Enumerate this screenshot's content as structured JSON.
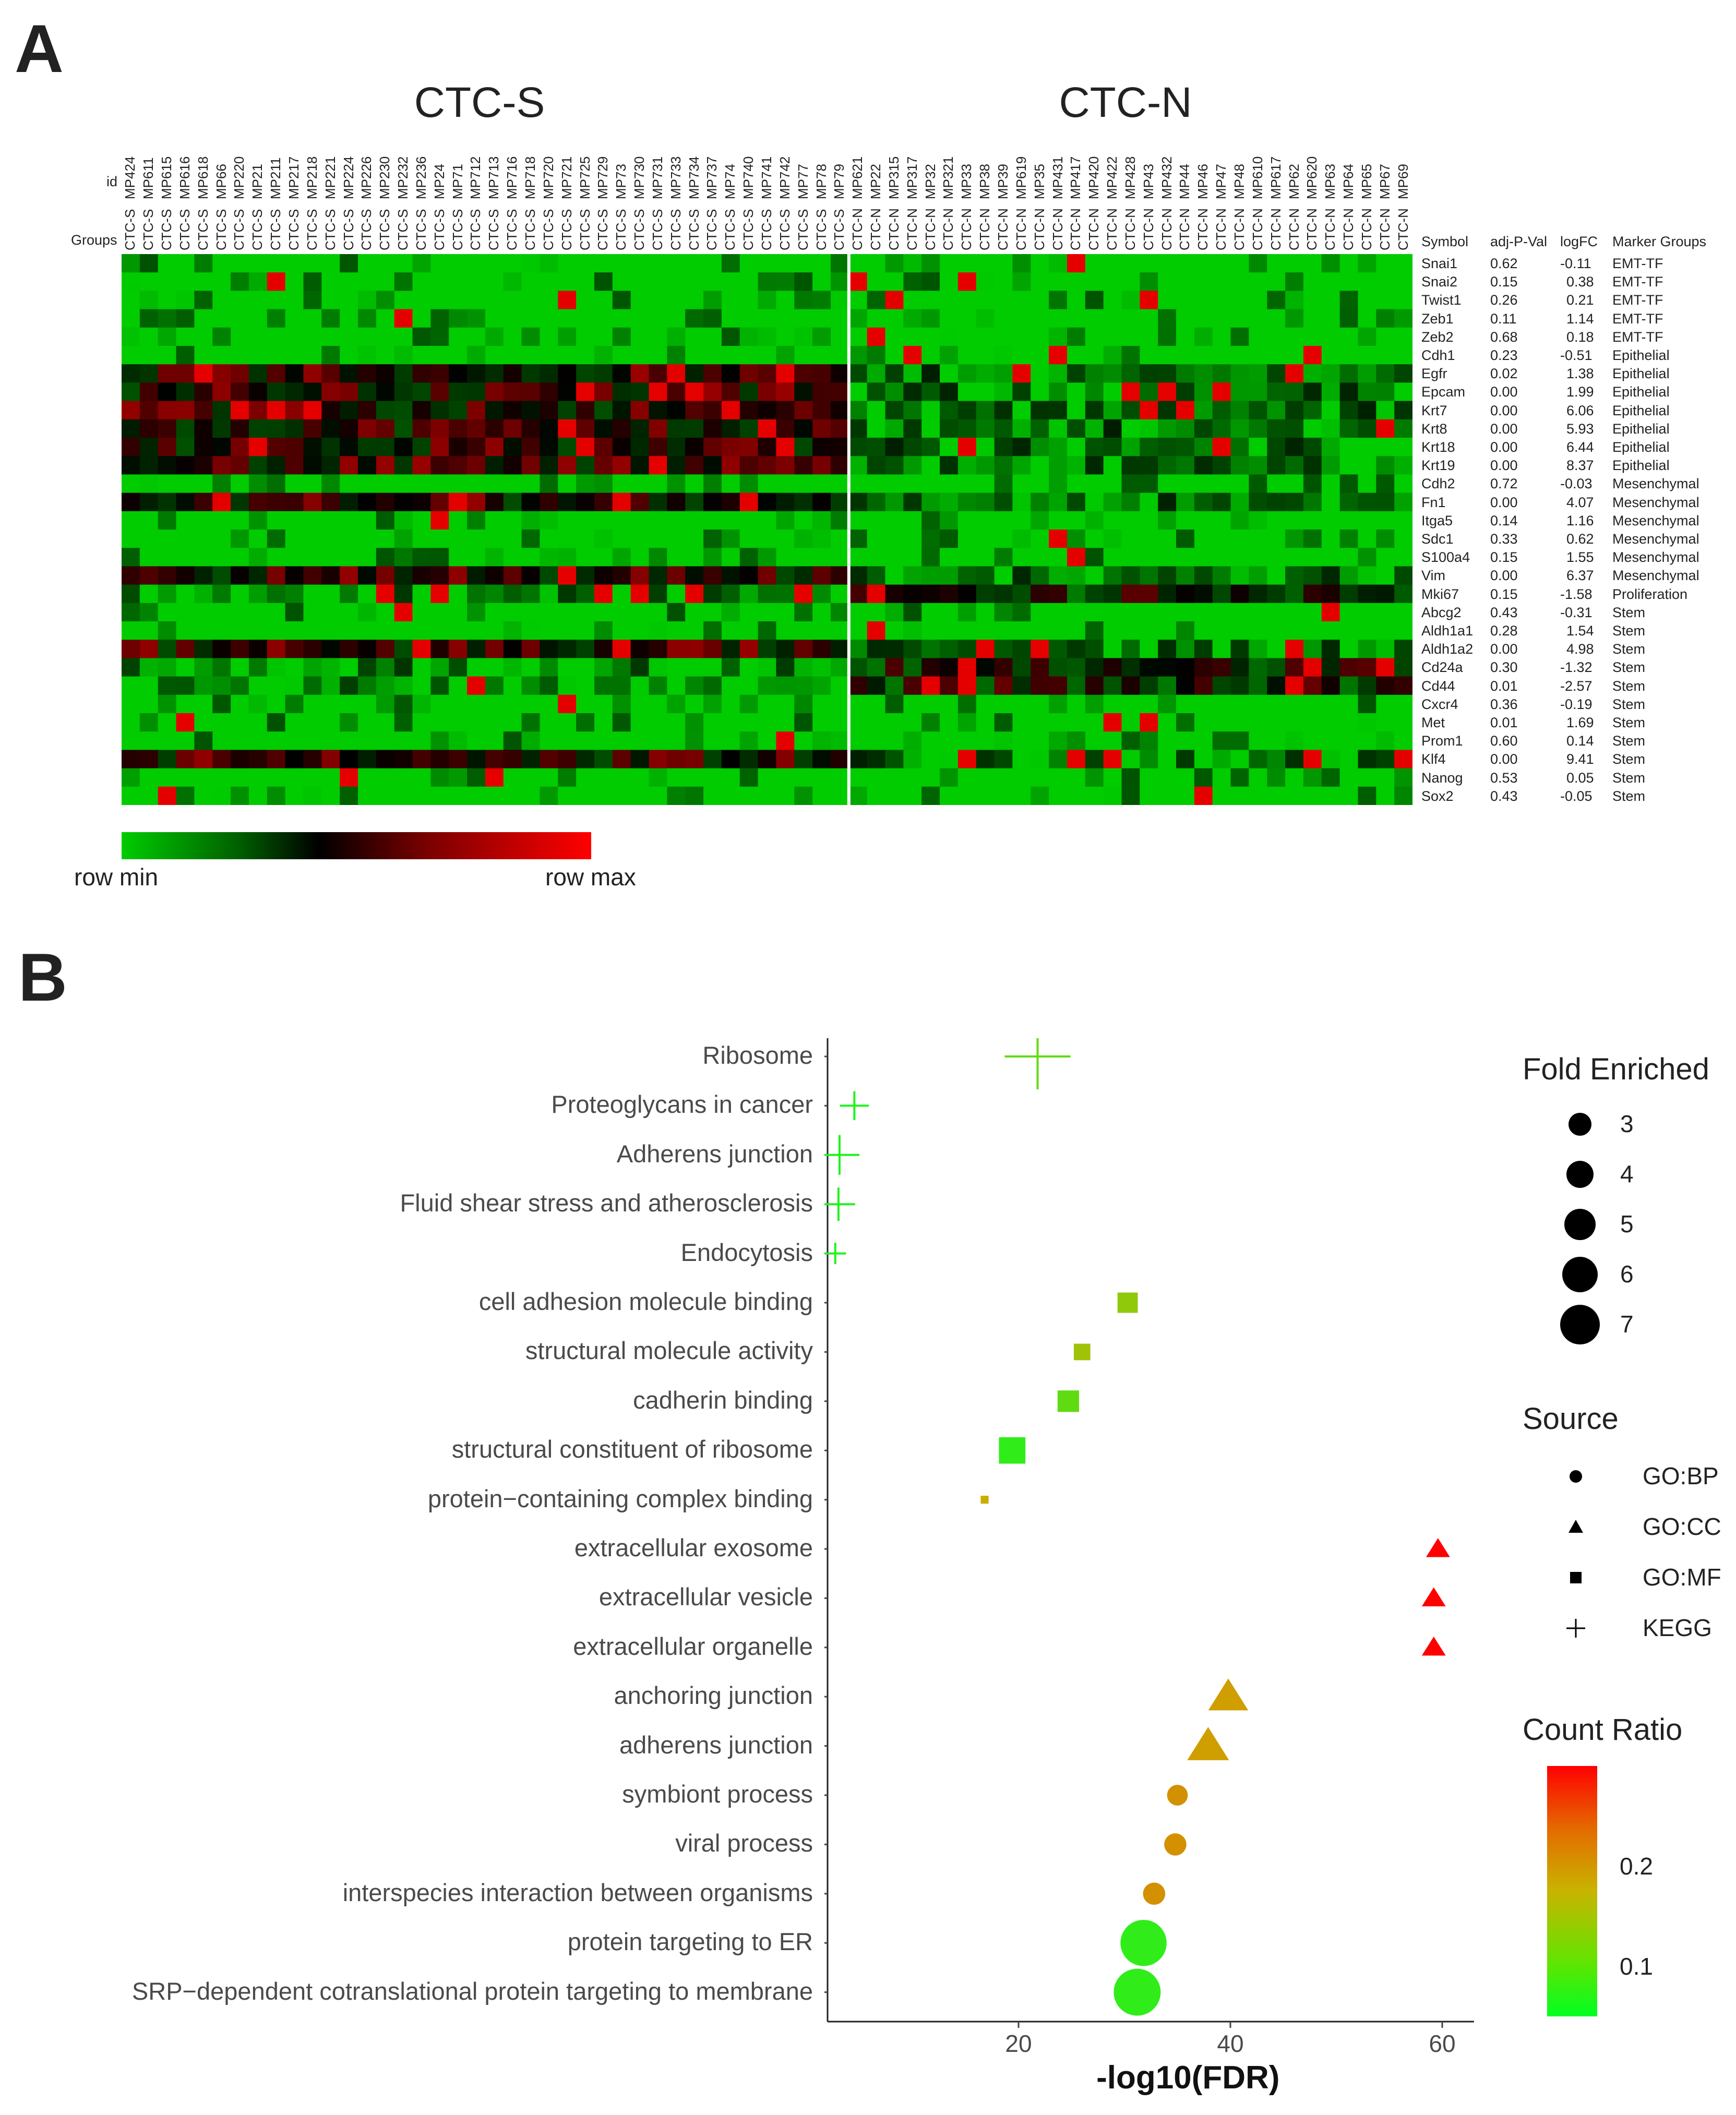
{
  "panel_a": {
    "letter": "A",
    "group_titles": {
      "left": "CTC-S",
      "right": "CTC-N"
    },
    "id_row_label": "id",
    "groups_row_label": "Groups",
    "ids_s": [
      "MP424",
      "MP611",
      "MP615",
      "MP616",
      "MP618",
      "MP66",
      "MP220",
      "MP21",
      "MP211",
      "MP217",
      "MP218",
      "MP221",
      "MP224",
      "MP226",
      "MP230",
      "MP232",
      "MP236",
      "MP24",
      "MP71",
      "MP712",
      "MP713",
      "MP716",
      "MP718",
      "MP720",
      "MP721",
      "MP725",
      "MP729",
      "MP73",
      "MP730",
      "MP731",
      "MP733",
      "MP734",
      "MP737",
      "MP74",
      "MP740",
      "MP741",
      "MP742",
      "MP77",
      "MP78",
      "MP79"
    ],
    "ids_n": [
      "MP621",
      "MP22",
      "MP315",
      "MP317",
      "MP32",
      "MP321",
      "MP33",
      "MP38",
      "MP39",
      "MP619",
      "MP35",
      "MP431",
      "MP417",
      "MP420",
      "MP422",
      "MP428",
      "MP43",
      "MP432",
      "MP44",
      "MP46",
      "MP47",
      "MP48",
      "MP610",
      "MP617",
      "MP62",
      "MP620",
      "MP63",
      "MP64",
      "MP65",
      "MP67",
      "MP69"
    ],
    "group_s_label": "CTC-S",
    "group_n_label": "CTC-N",
    "table_headers": [
      "Symbol",
      "adj-P-Val",
      "logFC",
      "Marker Groups"
    ],
    "rows": [
      [
        "Snai1",
        "0.62",
        "-0.11",
        "EMT-TF"
      ],
      [
        "Snai2",
        "0.15",
        "0.38",
        "EMT-TF"
      ],
      [
        "Twist1",
        "0.26",
        "0.21",
        "EMT-TF"
      ],
      [
        "Zeb1",
        "0.11",
        "1.14",
        "EMT-TF"
      ],
      [
        "Zeb2",
        "0.68",
        "0.18",
        "EMT-TF"
      ],
      [
        "Cdh1",
        "0.23",
        "-0.51",
        "Epithelial"
      ],
      [
        "Egfr",
        "0.02",
        "1.38",
        "Epithelial"
      ],
      [
        "Epcam",
        "0.00",
        "1.99",
        "Epithelial"
      ],
      [
        "Krt7",
        "0.00",
        "6.06",
        "Epithelial"
      ],
      [
        "Krt8",
        "0.00",
        "5.93",
        "Epithelial"
      ],
      [
        "Krt18",
        "0.00",
        "6.44",
        "Epithelial"
      ],
      [
        "Krt19",
        "0.00",
        "8.37",
        "Epithelial"
      ],
      [
        "Cdh2",
        "0.72",
        "-0.03",
        "Mesenchymal"
      ],
      [
        "Fn1",
        "0.00",
        "4.07",
        "Mesenchymal"
      ],
      [
        "Itga5",
        "0.14",
        "1.16",
        "Mesenchymal"
      ],
      [
        "Sdc1",
        "0.33",
        "0.62",
        "Mesenchymal"
      ],
      [
        "S100a4",
        "0.15",
        "1.55",
        "Mesenchymal"
      ],
      [
        "Vim",
        "0.00",
        "6.37",
        "Mesenchymal"
      ],
      [
        "Mki67",
        "0.15",
        "-1.58",
        "Proliferation"
      ],
      [
        "Abcg2",
        "0.43",
        "-0.31",
        "Stem"
      ],
      [
        "Aldh1a1",
        "0.28",
        "1.54",
        "Stem"
      ],
      [
        "Aldh1a2",
        "0.00",
        "4.98",
        "Stem"
      ],
      [
        "Cd24a",
        "0.30",
        "-1.32",
        "Stem"
      ],
      [
        "Cd44",
        "0.01",
        "-2.57",
        "Stem"
      ],
      [
        "Cxcr4",
        "0.36",
        "-0.19",
        "Stem"
      ],
      [
        "Met",
        "0.01",
        "1.69",
        "Stem"
      ],
      [
        "Prom1",
        "0.60",
        "0.14",
        "Stem"
      ],
      [
        "Klf4",
        "0.00",
        "9.41",
        "Stem"
      ],
      [
        "Nanog",
        "0.53",
        "0.05",
        "Stem"
      ],
      [
        "Sox2",
        "0.43",
        "-0.05",
        "Stem"
      ]
    ],
    "colorbar": {
      "min_label": "row min",
      "max_label": "row max",
      "colors": [
        "#00cc00",
        "#000000",
        "#ff0000"
      ]
    }
  },
  "panel_b": {
    "letter": "B",
    "legend_fold_title": "Fold Enriched",
    "legend_fold_values": [
      "3",
      "4",
      "5",
      "6",
      "7"
    ],
    "legend_source_title": "Source",
    "legend_source_items": [
      "GO:BP",
      "GO:CC",
      "GO:MF",
      "KEGG"
    ],
    "legend_count_title": "Count Ratio",
    "legend_count_ticks": [
      "0.2",
      "0.1"
    ]
  },
  "chart_data": {
    "type": "scatter",
    "title": "",
    "xlabel": "-log10(FDR)",
    "ylabel": "",
    "xlim": [
      0,
      63
    ],
    "xticks": [
      20,
      40,
      60
    ],
    "terms": [
      "Ribosome",
      "Proteoglycans in cancer",
      "Adherens junction",
      "Fluid shear stress and atherosclerosis",
      "Endocytosis",
      "cell adhesion molecule binding",
      "structural molecule activity",
      "cadherin binding",
      "structural constituent of ribosome",
      "protein−containing complex binding",
      "extracellular exosome",
      "extracellular vesicle",
      "extracellular organelle",
      "anchoring junction",
      "adherens junction",
      "symbiont process",
      "viral process",
      "interspecies interaction between organisms",
      "protein targeting to ER",
      "SRP−dependent cotranslational protein targeting to membrane"
    ],
    "x": [
      21.8,
      4.5,
      3.1,
      3.0,
      2.7,
      30.3,
      26.0,
      24.7,
      19.4,
      16.8,
      59.6,
      59.2,
      59.2,
      39.8,
      37.9,
      35.0,
      34.8,
      32.8,
      31.8,
      31.2
    ],
    "source": [
      "KEGG",
      "KEGG",
      "KEGG",
      "KEGG",
      "KEGG",
      "GO:MF",
      "GO:MF",
      "GO:MF",
      "GO:MF",
      "GO:MF",
      "GO:CC",
      "GO:CC",
      "GO:CC",
      "GO:CC",
      "GO:CC",
      "GO:BP",
      "GO:BP",
      "GO:BP",
      "GO:BP",
      "GO:BP"
    ],
    "fold_enriched": [
      7.0,
      3.6,
      4.6,
      4.0,
      2.9,
      4.2,
      3.6,
      4.4,
      5.2,
      2.2,
      3.6,
      3.6,
      3.6,
      5.4,
      5.6,
      3.6,
      3.8,
      3.8,
      6.9,
      7.0
    ],
    "count_ratio": [
      0.09,
      0.05,
      0.05,
      0.05,
      0.05,
      0.12,
      0.13,
      0.09,
      0.06,
      0.16,
      0.28,
      0.28,
      0.28,
      0.17,
      0.17,
      0.18,
      0.18,
      0.18,
      0.06,
      0.06
    ],
    "count_ratio_range": [
      0.03,
      0.28
    ],
    "count_ratio_colors": [
      "#00ff22",
      "#c8b400",
      "#ff0000"
    ]
  }
}
